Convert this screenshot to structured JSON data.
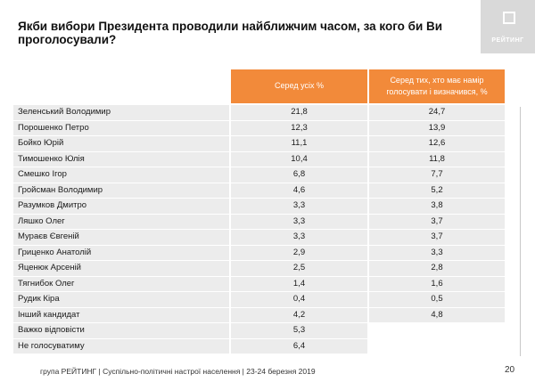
{
  "slide": {
    "title": "Якби вибори Президента проводили найближчим часом, за кого би Ви проголосували?",
    "logo_text": "РЕЙТИНГ",
    "footer": "група РЕЙТИНГ | Суспільно-політичні настрої населення  | 23-24 березня 2019",
    "page_number": "20",
    "header_color": "#f28a3a",
    "row_color": "#ececec"
  },
  "chart_data": {
    "type": "table",
    "columns": [
      "Серед усіх %",
      "Серед тих, хто має намір голосувати і визначився, %"
    ],
    "rows": [
      {
        "name": "Зеленський Володимир",
        "all": "21,8",
        "decided": "24,7"
      },
      {
        "name": "Порошенко Петро",
        "all": "12,3",
        "decided": "13,9"
      },
      {
        "name": "Бойко Юрій",
        "all": "11,1",
        "decided": "12,6"
      },
      {
        "name": "Тимошенко Юлія",
        "all": "10,4",
        "decided": "11,8"
      },
      {
        "name": "Смешко Ігор",
        "all": "6,8",
        "decided": "7,7"
      },
      {
        "name": "Гройсман Володимир",
        "all": "4,6",
        "decided": "5,2"
      },
      {
        "name": "Разумков Дмитро",
        "all": "3,3",
        "decided": "3,8"
      },
      {
        "name": "Ляшко Олег",
        "all": "3,3",
        "decided": "3,7"
      },
      {
        "name": "Мураєв Євгеній",
        "all": "3,3",
        "decided": "3,7"
      },
      {
        "name": "Гриценко Анатолій",
        "all": "2,9",
        "decided": "3,3"
      },
      {
        "name": "Яценюк  Арсеній",
        "all": "2,5",
        "decided": "2,8"
      },
      {
        "name": "Тягнибок Олег",
        "all": "1,4",
        "decided": "1,6"
      },
      {
        "name": "Рудик Кіра",
        "all": "0,4",
        "decided": "0,5"
      },
      {
        "name": "Інший кандидат",
        "all": "4,2",
        "decided": "4,8"
      },
      {
        "name": "Важко відповісти",
        "all": "5,3",
        "decided": ""
      },
      {
        "name": "Не голосуватиму",
        "all": "6,4",
        "decided": ""
      }
    ]
  }
}
